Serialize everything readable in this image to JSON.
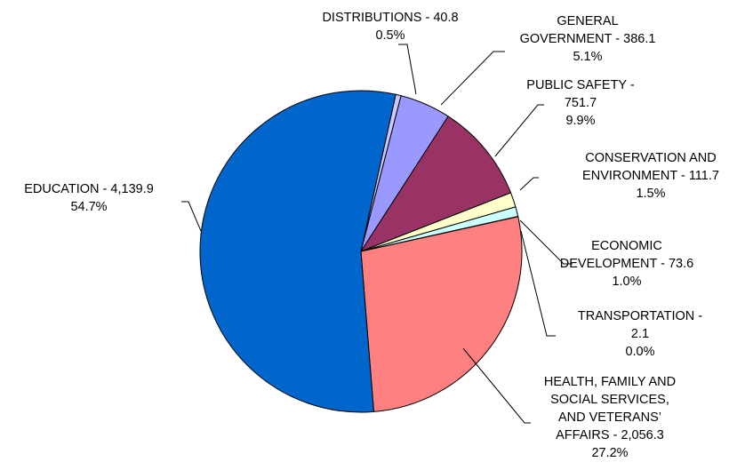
{
  "chart_data": {
    "type": "pie",
    "title": "",
    "start_angle_deg": 12.5,
    "direction": "clockwise",
    "slices": [
      {
        "name": "DISTRIBUTIONS",
        "value": 40.8,
        "percent": "0.5%",
        "color": "#C8C8FF",
        "label_lines": [
          "DISTRIBUTIONS - 40.8",
          "0.5%"
        ]
      },
      {
        "name": "GENERAL GOVERNMENT",
        "value": 386.1,
        "percent": "5.1%",
        "color": "#9999FF",
        "label_lines": [
          "GENERAL",
          "GOVERNMENT - 386.1",
          "5.1%"
        ]
      },
      {
        "name": "PUBLIC SAFETY",
        "value": 751.7,
        "percent": "9.9%",
        "color": "#993366",
        "label_lines": [
          "PUBLIC SAFETY -",
          "751.7",
          "9.9%"
        ]
      },
      {
        "name": "CONSERVATION AND ENVIRONMENT",
        "value": 111.7,
        "percent": "1.5%",
        "color": "#FFFFCC",
        "label_lines": [
          "CONSERVATION AND",
          "ENVIRONMENT - 111.7",
          "1.5%"
        ]
      },
      {
        "name": "ECONOMIC DEVELOPMENT",
        "value": 73.6,
        "percent": "1.0%",
        "color": "#CCFFFF",
        "label_lines": [
          "ECONOMIC",
          "DEVELOPMENT - 73.6",
          "1.0%"
        ]
      },
      {
        "name": "TRANSPORTATION",
        "value": 2.1,
        "percent": "0.0%",
        "color": "#6666CC",
        "label_lines": [
          "TRANSPORTATION -",
          "2.1",
          "0.0%"
        ]
      },
      {
        "name": "HEALTH, FAMILY AND SOCIAL SERVICES, AND VETERANS' AFFAIRS",
        "value": 2056.3,
        "percent": "27.2%",
        "color": "#FF8080",
        "label_lines": [
          "HEALTH, FAMILY AND",
          "SOCIAL SERVICES,",
          "AND VETERANS’",
          "AFFAIRS - 2,056.3",
          "27.2%"
        ]
      },
      {
        "name": "EDUCATION",
        "value": 4139.9,
        "percent": "54.7%",
        "color": "#0066CC",
        "label_lines": [
          "EDUCATION - 4,139.9",
          "54.7%"
        ]
      }
    ]
  }
}
